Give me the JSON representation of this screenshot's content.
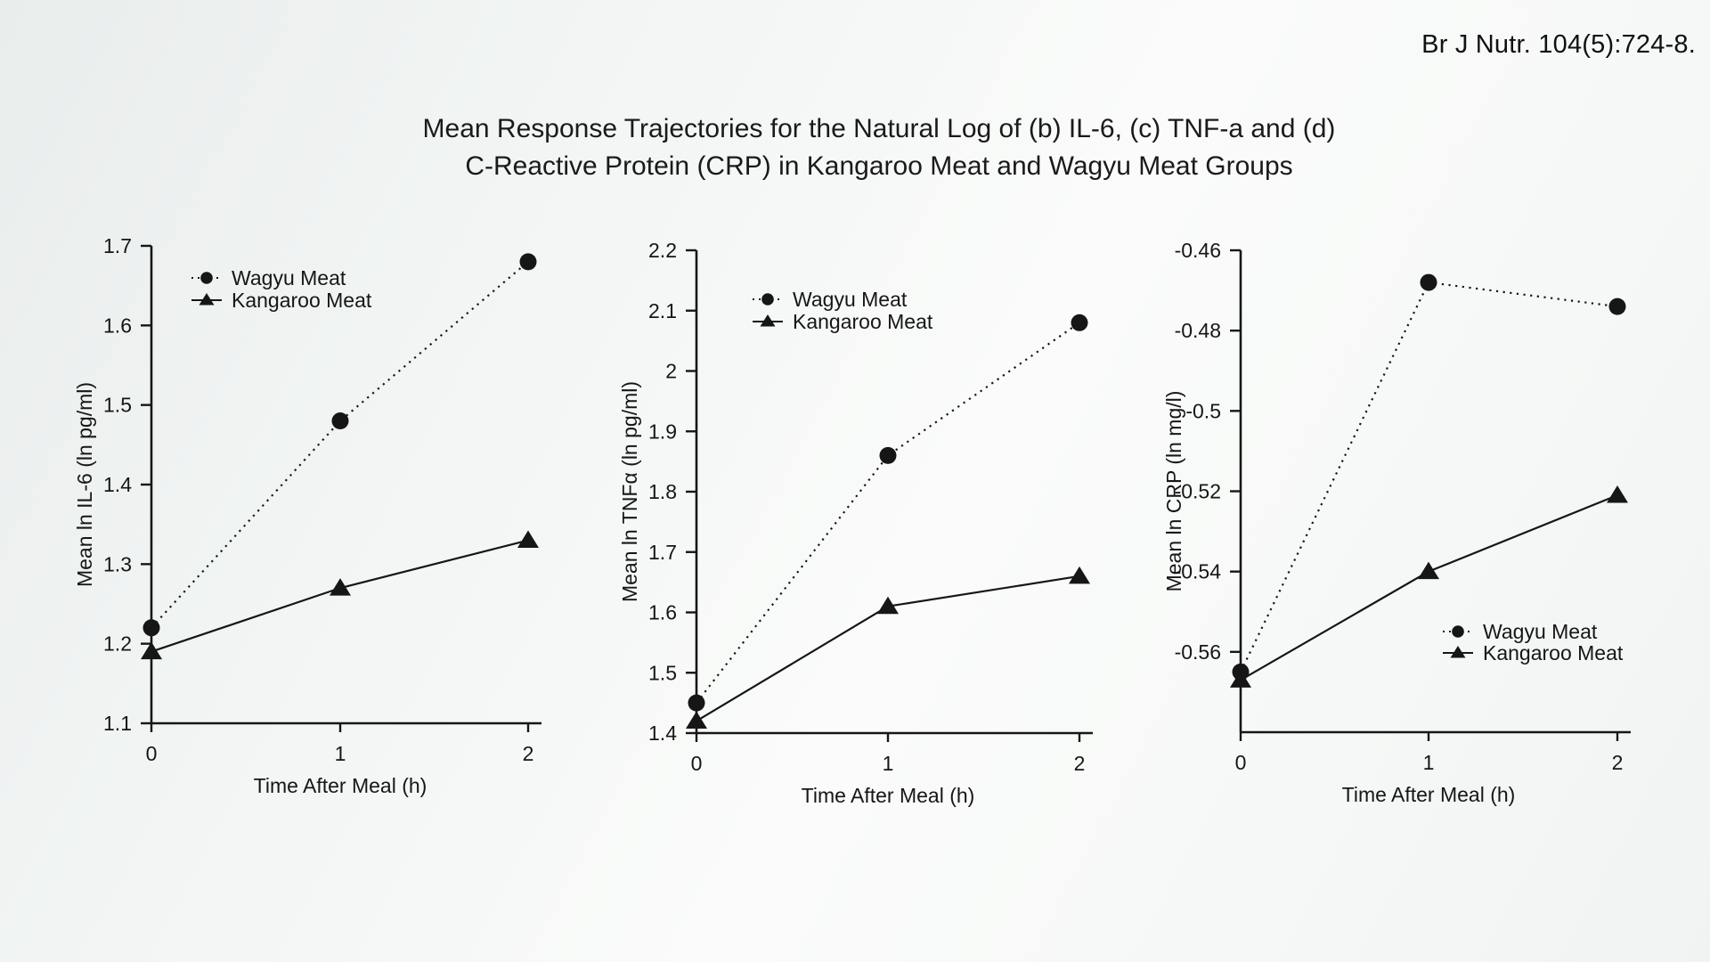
{
  "page": {
    "citation": "Br J Nutr. 104(5):724-8.",
    "title_line1": "Mean Response Trajectories for the Natural Log of (b) IL-6, (c) TNF-a and (d)",
    "title_line2": "C-Reactive Protein (CRP) in Kangaroo Meat and Wagyu Meat Groups",
    "ink_color": "#161616",
    "background_color": "#f2f5f4"
  },
  "chart_data": [
    {
      "id": "il6",
      "type": "line",
      "x": [
        0,
        1,
        2
      ],
      "xtick_labels": [
        "0",
        "1",
        "2"
      ],
      "xlabel": "Time After Meal (h)",
      "ylabel": "Mean ln IL-6 (ln pg/ml)",
      "ylim": [
        1.1,
        1.7
      ],
      "yticks": [
        1.1,
        1.2,
        1.3,
        1.4,
        1.5,
        1.6,
        1.7
      ],
      "ytick_labels": [
        "1.1",
        "1.2",
        "1.3",
        "1.4",
        "1.5",
        "1.6",
        "1.7"
      ],
      "grid": false,
      "legend_position": "top-left",
      "series": [
        {
          "name": "Wagyu Meat",
          "marker": "circle",
          "line": "dotted",
          "values": [
            1.22,
            1.48,
            1.68
          ]
        },
        {
          "name": "Kangaroo Meat",
          "marker": "triangle",
          "line": "solid",
          "values": [
            1.19,
            1.27,
            1.33
          ]
        }
      ]
    },
    {
      "id": "tnf",
      "type": "line",
      "x": [
        0,
        1,
        2
      ],
      "xtick_labels": [
        "0",
        "1",
        "2"
      ],
      "xlabel": "Time After Meal (h)",
      "ylabel": "Mean ln TNFα (ln pg/ml)",
      "ylim": [
        1.4,
        2.2
      ],
      "yticks": [
        1.4,
        1.5,
        1.6,
        1.7,
        1.8,
        1.9,
        2.0,
        2.1,
        2.2
      ],
      "ytick_labels": [
        "1.4",
        "1.5",
        "1.6",
        "1.7",
        "1.8",
        "1.9",
        "2",
        "2.1",
        "2.2"
      ],
      "grid": false,
      "legend_position": "top-left",
      "series": [
        {
          "name": "Wagyu Meat",
          "marker": "circle",
          "line": "dotted",
          "values": [
            1.45,
            1.86,
            2.08
          ]
        },
        {
          "name": "Kangaroo Meat",
          "marker": "triangle",
          "line": "solid",
          "values": [
            1.42,
            1.61,
            1.66
          ]
        }
      ]
    },
    {
      "id": "crp",
      "type": "line",
      "x": [
        0,
        1,
        2
      ],
      "xtick_labels": [
        "0",
        "1",
        "2"
      ],
      "xlabel": "Time After Meal (h)",
      "ylabel": "Mean ln CRP  (ln mg/l)",
      "ylim": [
        -0.58,
        -0.46
      ],
      "yticks": [
        -0.46,
        -0.48,
        -0.5,
        -0.52,
        -0.54,
        -0.56
      ],
      "ytick_labels": [
        "-0.46",
        "-0.48",
        "-0.5",
        "-0.52",
        "-0.54",
        "-0.56"
      ],
      "grid": false,
      "legend_position": "mid-right",
      "series": [
        {
          "name": "Wagyu Meat",
          "marker": "circle",
          "line": "dotted",
          "values": [
            -0.565,
            -0.468,
            -0.474
          ]
        },
        {
          "name": "Kangaroo Meat",
          "marker": "triangle",
          "line": "solid",
          "values": [
            -0.567,
            -0.54,
            -0.521
          ]
        }
      ]
    }
  ]
}
